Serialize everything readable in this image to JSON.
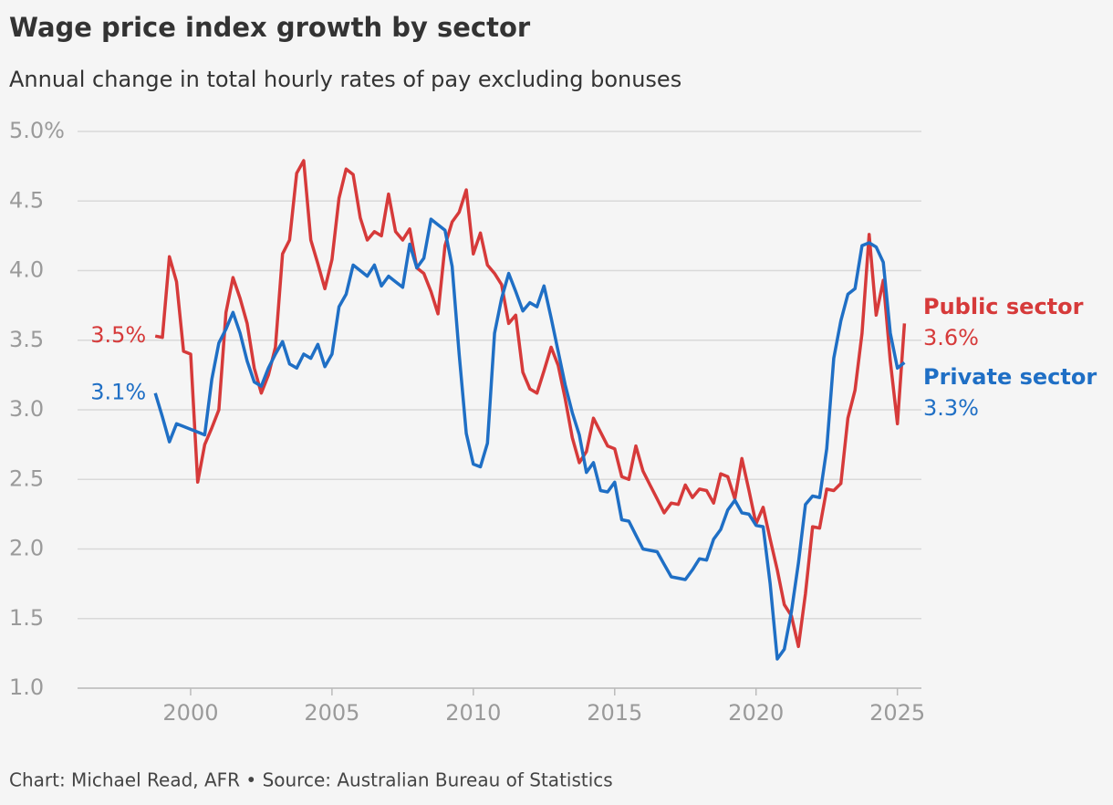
{
  "chart_data": {
    "type": "line",
    "title": "Wage price index growth by sector",
    "subtitle": "Annual change in total hourly rates of pay excluding bonuses",
    "source": "Chart: Michael Read, AFR • Source: Australian Bureau of Statistics",
    "x": [
      1998.75,
      1999,
      1999.25,
      1999.5,
      1999.75,
      2000,
      2000.25,
      2000.5,
      2000.75,
      2001,
      2001.25,
      2001.5,
      2001.75,
      2002,
      2002.25,
      2002.5,
      2002.75,
      2003,
      2003.25,
      2003.5,
      2003.75,
      2004,
      2004.25,
      2004.5,
      2004.75,
      2005,
      2005.25,
      2005.5,
      2005.75,
      2006,
      2006.25,
      2006.5,
      2006.75,
      2007,
      2007.25,
      2007.5,
      2007.75,
      2008,
      2008.25,
      2008.5,
      2008.75,
      2009,
      2009.25,
      2009.5,
      2009.75,
      2010,
      2010.25,
      2010.5,
      2010.75,
      2011,
      2011.25,
      2011.5,
      2011.75,
      2012,
      2012.25,
      2012.5,
      2012.75,
      2013,
      2013.25,
      2013.5,
      2013.75,
      2014,
      2014.25,
      2014.5,
      2014.75,
      2015,
      2015.25,
      2015.5,
      2015.75,
      2016,
      2016.25,
      2016.5,
      2016.75,
      2017,
      2017.25,
      2017.5,
      2017.75,
      2018,
      2018.25,
      2018.5,
      2018.75,
      2019,
      2019.25,
      2019.5,
      2019.75,
      2020,
      2020.25,
      2020.5,
      2020.75,
      2021,
      2021.25,
      2021.5,
      2021.75,
      2022,
      2022.25,
      2022.5,
      2022.75,
      2023,
      2023.25,
      2023.5,
      2023.75,
      2024,
      2024.25,
      2024.5,
      2024.75,
      2025,
      2025.25
    ],
    "series": [
      {
        "name": "Public sector",
        "color": "#d63a3a",
        "start_label": "3.5%",
        "end_label": "3.6%",
        "values": [
          3.53,
          3.52,
          4.1,
          3.92,
          3.42,
          3.4,
          2.48,
          2.75,
          2.87,
          3.0,
          3.7,
          3.95,
          3.8,
          3.62,
          3.3,
          3.12,
          3.25,
          3.45,
          4.12,
          4.22,
          4.7,
          4.79,
          4.22,
          4.05,
          3.87,
          4.08,
          4.52,
          4.73,
          4.69,
          4.38,
          4.22,
          4.28,
          4.25,
          4.55,
          4.28,
          4.22,
          4.3,
          4.02,
          3.98,
          3.85,
          3.69,
          4.18,
          4.35,
          4.42,
          4.58,
          4.12,
          4.27,
          4.04,
          3.98,
          3.9,
          3.62,
          3.68,
          3.27,
          3.15,
          3.12,
          3.28,
          3.45,
          3.32,
          3.08,
          2.8,
          2.62,
          2.7,
          2.94,
          2.84,
          2.74,
          2.72,
          2.52,
          2.5,
          2.74,
          2.56,
          2.46,
          2.36,
          2.26,
          2.33,
          2.32,
          2.46,
          2.37,
          2.43,
          2.42,
          2.33,
          2.54,
          2.52,
          2.36,
          2.65,
          2.42,
          2.18,
          2.3,
          2.07,
          1.85,
          1.6,
          1.52,
          1.3,
          1.68,
          2.16,
          2.15,
          2.43,
          2.42,
          2.47,
          2.94,
          3.14,
          3.55,
          4.26,
          3.68,
          3.93,
          3.35,
          2.9,
          3.62
        ]
      },
      {
        "name": "Private sector",
        "color": "#1f6fc5",
        "start_label": "3.1%",
        "end_label": "3.3%",
        "values": [
          3.12,
          2.95,
          2.77,
          2.9,
          2.88,
          2.86,
          2.84,
          2.82,
          3.22,
          3.48,
          3.58,
          3.7,
          3.55,
          3.35,
          3.2,
          3.17,
          3.3,
          3.4,
          3.49,
          3.33,
          3.3,
          3.4,
          3.37,
          3.47,
          3.31,
          3.4,
          3.74,
          3.83,
          4.04,
          4.0,
          3.96,
          4.04,
          3.89,
          3.96,
          3.92,
          3.88,
          4.19,
          4.02,
          4.09,
          4.37,
          4.33,
          4.29,
          4.03,
          3.4,
          2.83,
          2.61,
          2.59,
          2.76,
          3.55,
          3.8,
          3.98,
          3.85,
          3.71,
          3.77,
          3.74,
          3.89,
          3.66,
          3.42,
          3.18,
          2.98,
          2.82,
          2.55,
          2.62,
          2.42,
          2.41,
          2.48,
          2.21,
          2.2,
          2.1,
          2.0,
          1.99,
          1.98,
          1.89,
          1.8,
          1.79,
          1.78,
          1.85,
          1.93,
          1.92,
          2.07,
          2.14,
          2.28,
          2.35,
          2.26,
          2.25,
          2.17,
          2.16,
          1.75,
          1.21,
          1.28,
          1.55,
          1.9,
          2.32,
          2.38,
          2.37,
          2.72,
          3.37,
          3.64,
          3.83,
          3.87,
          4.18,
          4.2,
          4.17,
          4.06,
          3.55,
          3.3,
          3.34
        ]
      }
    ],
    "xlim": [
      1996,
      2025.85
    ],
    "xticks": [
      2000,
      2005,
      2010,
      2015,
      2020,
      2025
    ],
    "ylim": [
      1,
      5
    ],
    "yticks": [
      {
        "value": 1,
        "label": "1.0"
      },
      1.5,
      {
        "value": 2,
        "label": "2.0"
      },
      2.5,
      {
        "value": 3,
        "label": "3.0"
      },
      3.5,
      {
        "value": 4,
        "label": "4.0"
      },
      4.5,
      {
        "value": 5,
        "label": "5.0%"
      }
    ],
    "grid": true
  }
}
